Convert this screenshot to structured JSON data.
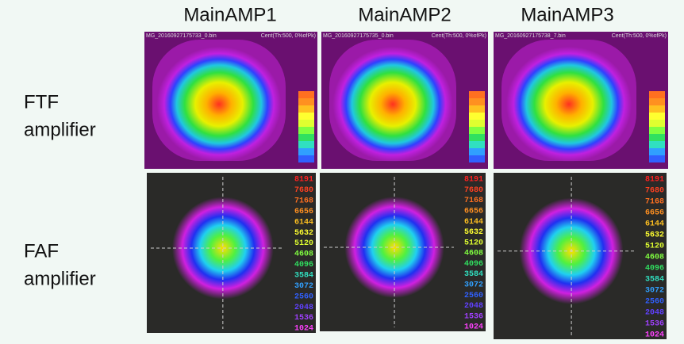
{
  "columns": [
    "MainAMP1",
    "MainAMP2",
    "MainAMP3"
  ],
  "rows": [
    {
      "label": [
        "FTF",
        "amplifier"
      ]
    },
    {
      "label": [
        "FAF",
        "amplifier"
      ]
    }
  ],
  "ftf_panels": [
    {
      "file": "MG_20160927175733_0.bin",
      "info": "Cent(Th:500, 0%ofPk)"
    },
    {
      "file": "MG_20160927175735_0.bin",
      "info": "Cent(Th:500, 0%ofPk)"
    },
    {
      "file": "MG_20160927175738_7.bin",
      "info": "Cent(Th:500, 0%ofPk)"
    }
  ],
  "faf_scale": [
    "8191",
    "7680",
    "7168",
    "6656",
    "6144",
    "5632",
    "5120",
    "4608",
    "4096",
    "3584",
    "3072",
    "2560",
    "2048",
    "1536",
    "1024"
  ]
}
